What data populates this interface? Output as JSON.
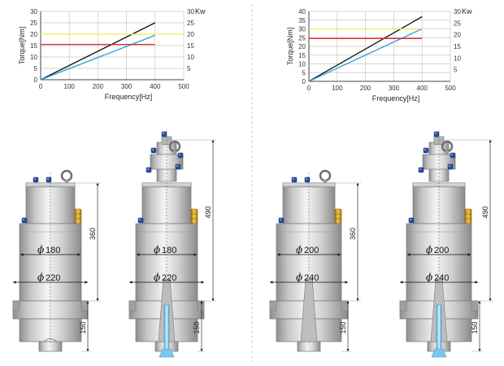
{
  "colors": {
    "black": "#111111",
    "blue": "#2e9bd6",
    "yellow": "#f2e94e",
    "red": "#e6262e",
    "grid": "#c8c8c8",
    "body": "#cfcfcf",
    "bolt": "#2c4ca0",
    "brass": "#d9a520",
    "nozzle": "#7cc8ec"
  },
  "chart_data": [
    {
      "type": "line",
      "xlabel": "Frequency[Hz]",
      "ylabel": "Torque[Nm]",
      "y2label": "Kw",
      "xlim": [
        0,
        500
      ],
      "ylim": [
        0,
        30
      ],
      "y2lim": [
        0,
        30
      ],
      "xticks": [
        "0",
        "100",
        "200",
        "300",
        "400",
        "500"
      ],
      "yticks": [
        "0",
        "5",
        "10",
        "15",
        "20",
        "25",
        "30"
      ],
      "y2ticks": [
        "5",
        "10",
        "15",
        "20",
        "25",
        "30"
      ],
      "series": [
        {
          "color": "black",
          "points": [
            [
              0,
              0
            ],
            [
              400,
              25
            ]
          ]
        },
        {
          "color": "blue",
          "points": [
            [
              0,
              0
            ],
            [
              400,
              19.5
            ]
          ]
        },
        {
          "color": "yellow",
          "points": [
            [
              0,
              20
            ],
            [
              500,
              20
            ]
          ]
        },
        {
          "color": "red",
          "points": [
            [
              0,
              15.5
            ],
            [
              400,
              15.5
            ]
          ]
        }
      ]
    },
    {
      "type": "line",
      "xlabel": "Frequency[Hz]",
      "ylabel": "Torque[Nm]",
      "y2label": "Kw",
      "xlim": [
        0,
        500
      ],
      "ylim": [
        0,
        40
      ],
      "y2lim": [
        0,
        30
      ],
      "xticks": [
        "0",
        "100",
        "200",
        "300",
        "400",
        "500"
      ],
      "yticks": [
        "0",
        "5",
        "10",
        "15",
        "20",
        "25",
        "30",
        "35",
        "40"
      ],
      "y2ticks": [
        "5",
        "10",
        "15",
        "20",
        "25",
        "30"
      ],
      "series": [
        {
          "color": "black",
          "points": [
            [
              0,
              0
            ],
            [
              400,
              37
            ]
          ]
        },
        {
          "color": "blue",
          "points": [
            [
              0,
              0
            ],
            [
              400,
              30
            ]
          ]
        },
        {
          "color": "yellow",
          "points": [
            [
              0,
              30
            ],
            [
              400,
              30
            ]
          ]
        },
        {
          "color": "red",
          "points": [
            [
              0,
              24.5
            ],
            [
              400,
              24.5
            ]
          ]
        }
      ]
    }
  ],
  "spindles": [
    {
      "d_inner": "180",
      "d_outer": "220",
      "h_top": "360",
      "h_bottom": "150"
    },
    {
      "d_inner": "180",
      "d_outer": "220",
      "h_top": "490",
      "h_bottom": "150"
    },
    {
      "d_inner": "200",
      "d_outer": "240",
      "h_top": "360",
      "h_bottom": "150"
    },
    {
      "d_inner": "200",
      "d_outer": "240",
      "h_top": "490",
      "h_bottom": "150"
    }
  ]
}
